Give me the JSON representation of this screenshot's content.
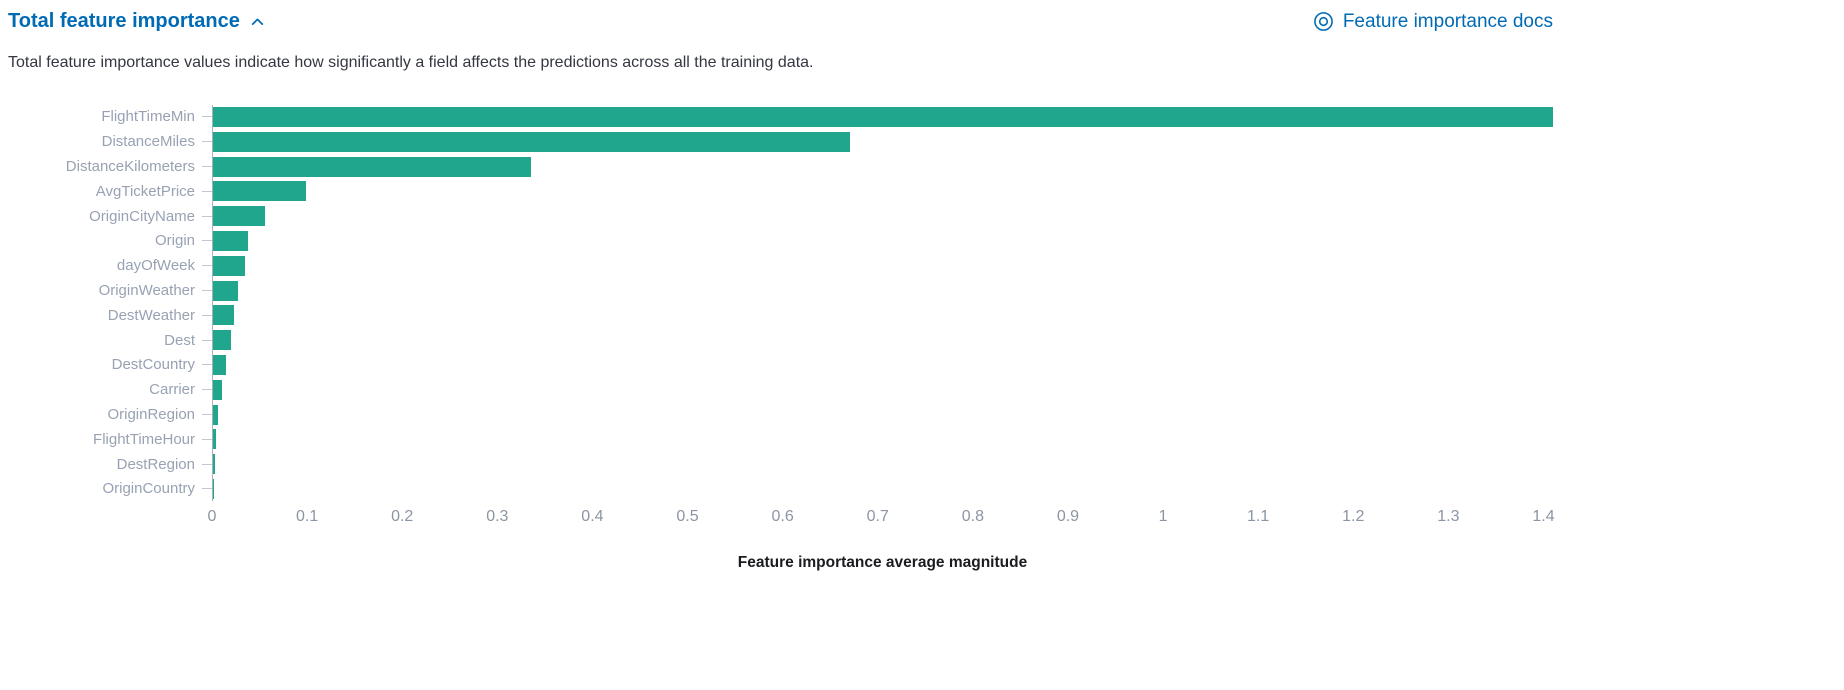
{
  "header": {
    "title": "Total feature importance",
    "collapse_icon": "chevron-up",
    "docs_link_label": "Feature importance docs",
    "docs_icon": "documentation-icon",
    "link_color": "#006BB4"
  },
  "description": "Total feature importance values indicate how significantly a field affects the predictions across all the training data.",
  "chart_data": {
    "type": "bar",
    "orientation": "horizontal",
    "title": "Total feature importance",
    "xlabel": "Feature importance average magnitude",
    "ylabel": "",
    "categories": [
      "FlightTimeMin",
      "DistanceMiles",
      "DistanceKilometers",
      "AvgTicketPrice",
      "OriginCityName",
      "Origin",
      "dayOfWeek",
      "OriginWeather",
      "DestWeather",
      "Dest",
      "DestCountry",
      "Carrier",
      "OriginRegion",
      "FlightTimeHour",
      "DestRegion",
      "OriginCountry"
    ],
    "values": [
      1.41,
      0.67,
      0.335,
      0.098,
      0.055,
      0.037,
      0.034,
      0.026,
      0.022,
      0.019,
      0.014,
      0.009,
      0.005,
      0.003,
      0.002,
      0.0005
    ],
    "x_ticks": [
      0,
      0.1,
      0.2,
      0.3,
      0.4,
      0.5,
      0.6,
      0.7,
      0.8,
      0.9,
      1,
      1.1,
      1.2,
      1.3,
      1.4
    ],
    "x_tick_labels": [
      "0",
      "0.1",
      "0.2",
      "0.3",
      "0.4",
      "0.5",
      "0.6",
      "0.7",
      "0.8",
      "0.9",
      "1",
      "1.1",
      "1.2",
      "1.3",
      "1.4"
    ],
    "xlim": [
      0,
      1.41
    ],
    "grid": false,
    "legend": "none",
    "bar_color": "#20A68C",
    "category_label_color": "#98A2B3",
    "tick_label_color": "#8b95a3"
  }
}
